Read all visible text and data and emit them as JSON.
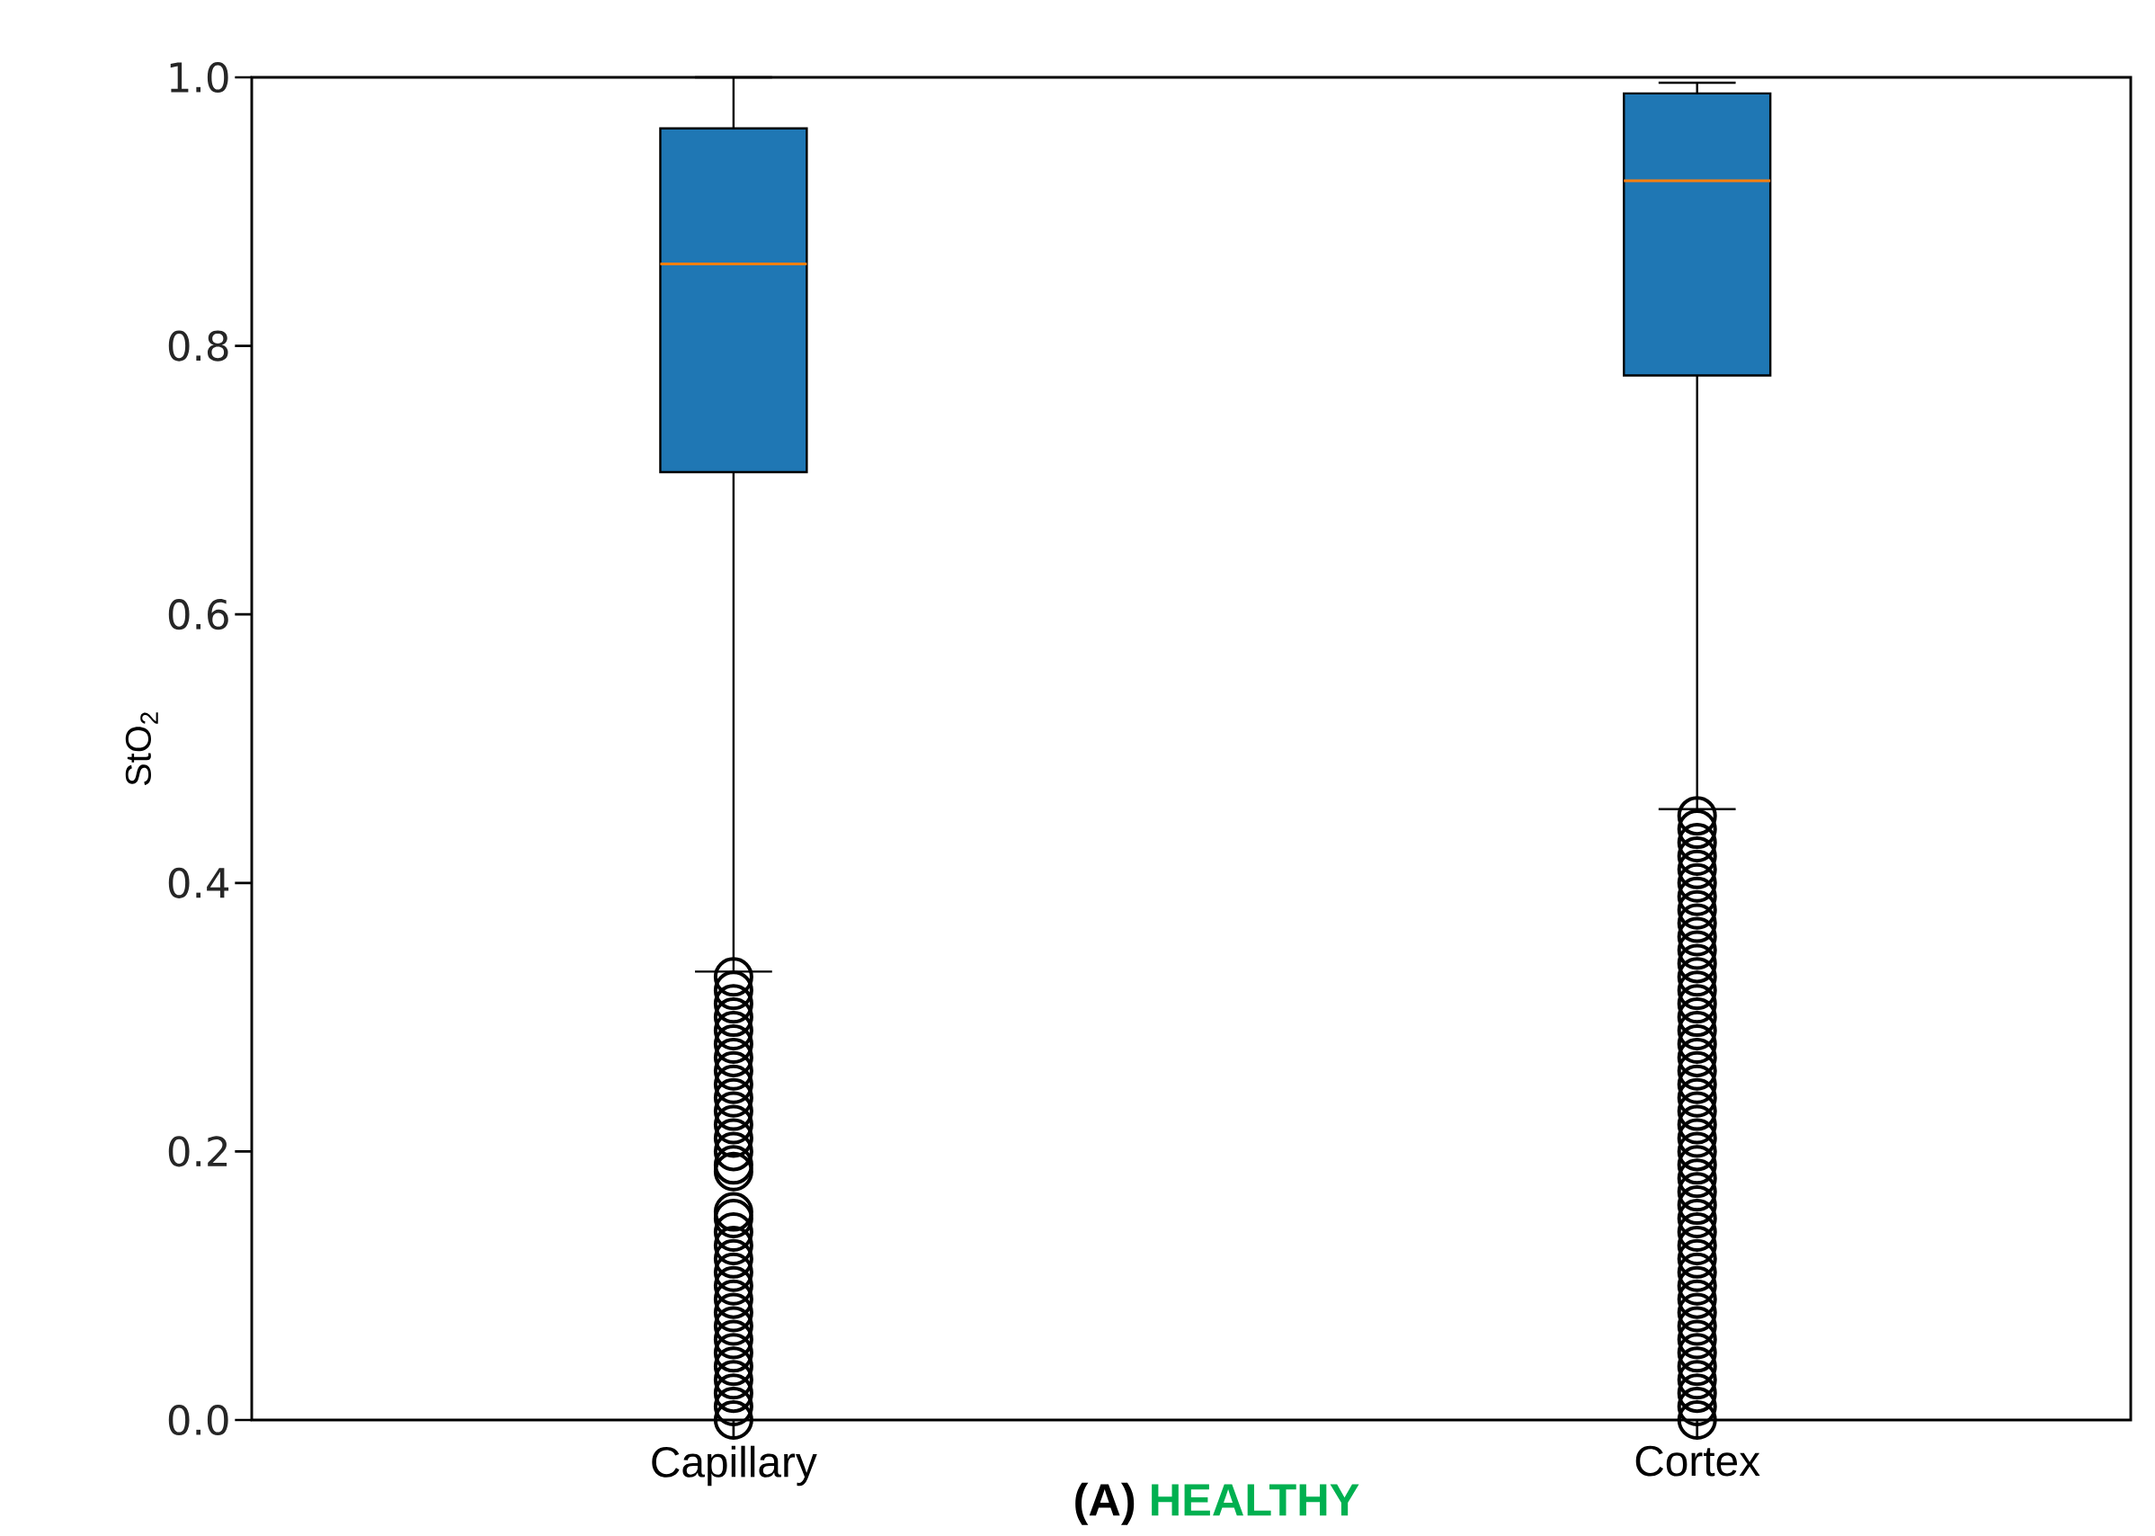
{
  "chart_data": {
    "type": "box",
    "title": "(A)",
    "subtitle": "HEALTHY",
    "ylabel": "StO$_{2}$",
    "categories": [
      "Capillary",
      "Cortex"
    ],
    "color": "#1f77b4",
    "marker": "circle",
    "boxes": [
      {
        "low": 0.334,
        "q1": 0.706,
        "median": 0.861,
        "q3": 0.962,
        "high": 1.0,
        "outliers": [
          0.0,
          0.01,
          0.02,
          0.03,
          0.04,
          0.05,
          0.06,
          0.07,
          0.08,
          0.09,
          0.1,
          0.11,
          0.12,
          0.13,
          0.14,
          0.15,
          0.155,
          0.185,
          0.19,
          0.2,
          0.21,
          0.22,
          0.23,
          0.24,
          0.25,
          0.26,
          0.27,
          0.28,
          0.29,
          0.3,
          0.31,
          0.32,
          0.33
        ]
      },
      {
        "low": 0.455,
        "q1": 0.778,
        "median": 0.923,
        "q3": 0.988,
        "high": 0.996,
        "outliers": [
          0.0,
          0.01,
          0.02,
          0.03,
          0.04,
          0.05,
          0.06,
          0.07,
          0.08,
          0.09,
          0.1,
          0.11,
          0.12,
          0.13,
          0.14,
          0.15,
          0.16,
          0.17,
          0.18,
          0.19,
          0.2,
          0.21,
          0.22,
          0.23,
          0.24,
          0.25,
          0.26,
          0.27,
          0.28,
          0.29,
          0.3,
          0.31,
          0.32,
          0.33,
          0.34,
          0.35,
          0.36,
          0.37,
          0.38,
          0.39,
          0.4,
          0.41,
          0.42,
          0.43,
          0.44,
          0.45
        ]
      }
    ],
    "ylim": [
      0,
      1
    ],
    "yticks": [
      {
        "value": 0,
        "label": "0.0"
      },
      0.2,
      0.4,
      0.6,
      0.8,
      {
        "value": 1,
        "label": "1.0"
      }
    ]
  }
}
